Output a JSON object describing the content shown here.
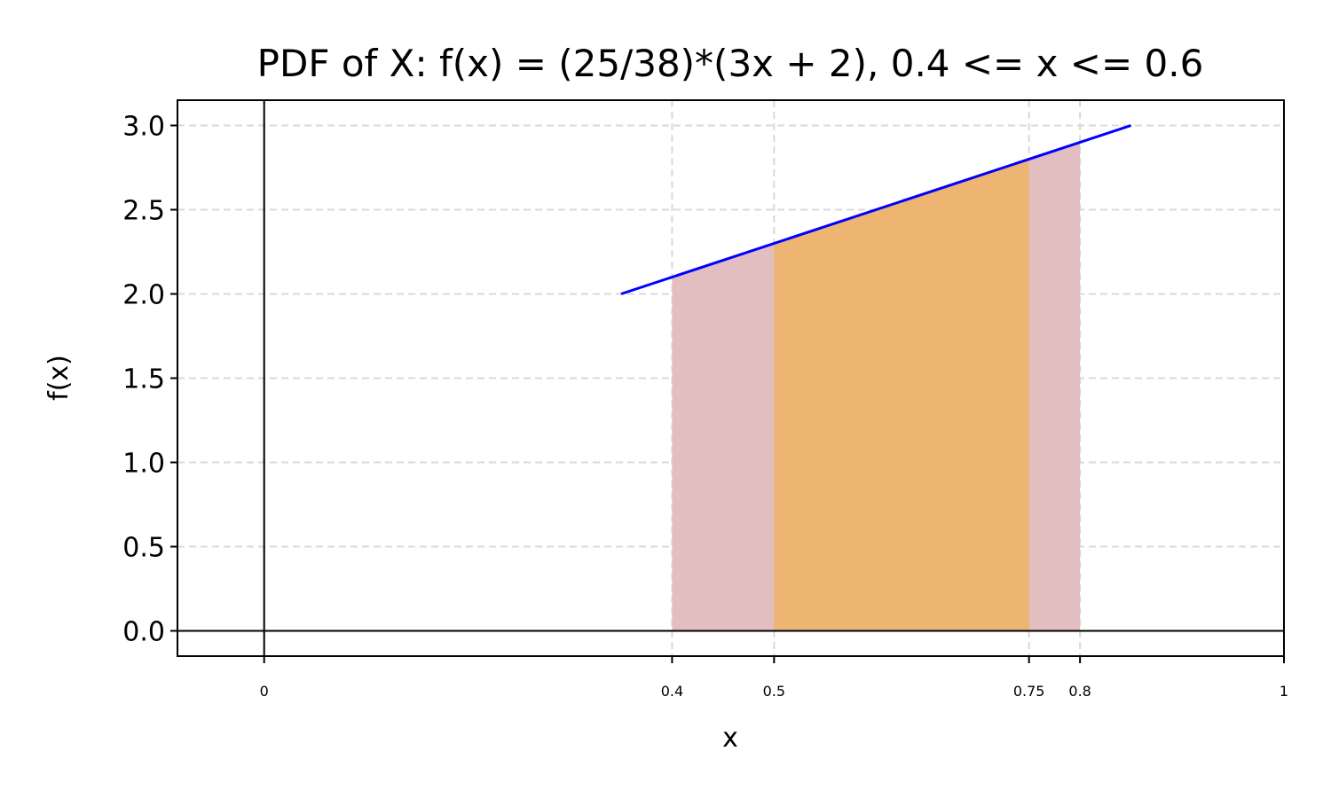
{
  "chart_data": {
    "type": "area",
    "title": "PDF of X: f(x) = (25/38)*(3x + 2), 0.4 <= x <= 0.6",
    "xlabel": "x",
    "ylabel": "f(x)",
    "xlim": [
      -0.085,
      1.0
    ],
    "ylim": [
      -0.15,
      3.15
    ],
    "yticks": [
      0.0,
      0.5,
      1.0,
      1.5,
      2.0,
      2.5,
      3.0
    ],
    "ytick_labels": [
      "0.0",
      "0.5",
      "1.0",
      "1.5",
      "2.0",
      "2.5",
      "3.0"
    ],
    "xticks": [
      0,
      0.4,
      0.5,
      0.75,
      0.8,
      1
    ],
    "xtick_labels": [
      "0",
      "0.4",
      "0.5",
      "0.75",
      "0.8",
      "1"
    ],
    "grid": true,
    "series": [
      {
        "type": "line",
        "color": "#0000ff",
        "x": [
          0.35,
          0.85
        ],
        "y": [
          2.0,
          3.0
        ]
      }
    ],
    "regions": [
      {
        "from": 0.4,
        "to": 0.8,
        "color": "#e2bec1",
        "line_start": 0.35,
        "line_slope": 2.0,
        "line_intercept": 2.0
      },
      {
        "from": 0.5,
        "to": 0.75,
        "color": "#edb571",
        "line_start": 0.35,
        "line_slope": 2.0,
        "line_intercept": 2.0
      }
    ],
    "colors": {
      "grid": "#d9d9d9",
      "axis": "#000000",
      "curve": "#0000ff"
    }
  }
}
